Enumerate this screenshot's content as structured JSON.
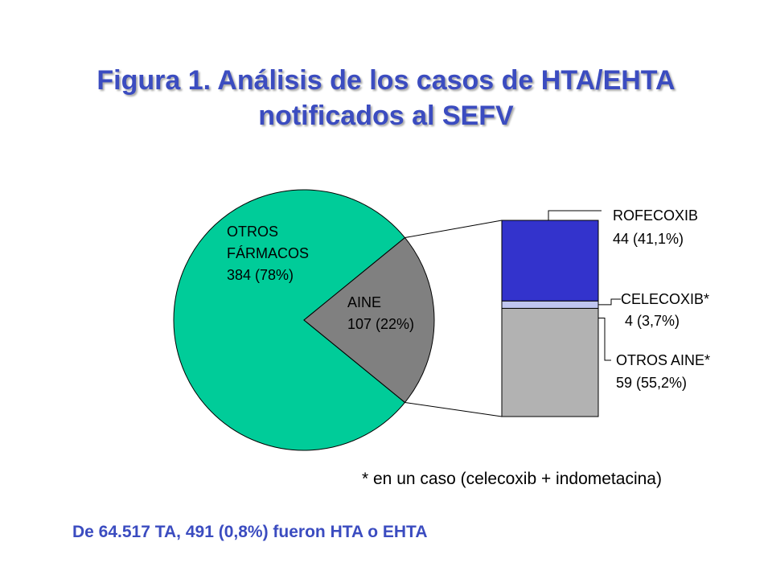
{
  "title": {
    "line1": "Figura 1. Análisis de los casos de HTA/EHTA",
    "line2": "notificados al SEFV"
  },
  "colors": {
    "otros_farmacos": "#00cc99",
    "aine": "#808080",
    "rofecoxib": "#3333cc",
    "celecoxib": "#c0c6f0",
    "otros_aine": "#b2b2b2",
    "title": "#3b4cc0"
  },
  "chart_data": [
    {
      "type": "pie",
      "slices": [
        {
          "label_lines": [
            "OTROS",
            "FÁRMACOS",
            "384 (78%)"
          ],
          "value": 384,
          "percent": 78
        },
        {
          "label_lines": [
            "AINE",
            "107 (22%)"
          ],
          "value": 107,
          "percent": 22
        }
      ]
    },
    {
      "type": "bar",
      "stacked": true,
      "segments": [
        {
          "label_lines": [
            "ROFECOXIB",
            "44 (41,1%)"
          ],
          "value": 44,
          "percent": 41.1
        },
        {
          "label_lines": [
            "CELECOXIB*",
            " 4 (3,7%)"
          ],
          "value": 4,
          "percent": 3.7
        },
        {
          "label_lines": [
            "OTROS AINE*",
            "59 (55,2%)"
          ],
          "value": 59,
          "percent": 55.2
        }
      ]
    }
  ],
  "note": "* en un caso (celecoxib + indometacina)",
  "footer": "De 64.517 TA, 491 (0,8%) fueron HTA o EHTA"
}
